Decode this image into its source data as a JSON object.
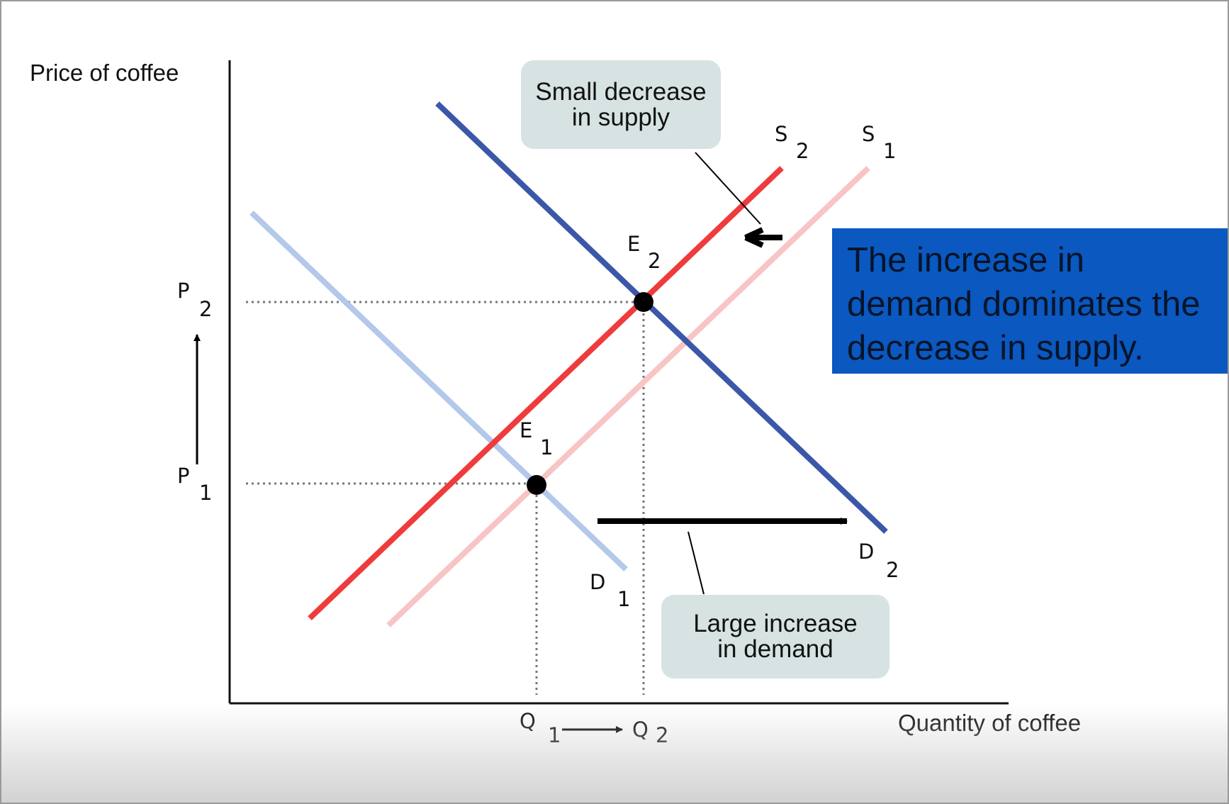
{
  "axes": {
    "y_title": "Price of coffee",
    "x_title": "Quantity of coffee"
  },
  "price_labels": {
    "p1": "P",
    "p1_sub": "1",
    "p2": "P",
    "p2_sub": "2"
  },
  "quantity_labels": {
    "q1": "Q",
    "q1_sub": "1",
    "q2": "Q",
    "q2_sub": "2"
  },
  "curves": {
    "s1": "S",
    "s1_sub": "1",
    "s2": "S",
    "s2_sub": "2",
    "d1": "D",
    "d1_sub": "1",
    "d2": "D",
    "d2_sub": "2"
  },
  "points": {
    "e1": "E",
    "e1_sub": "1",
    "e2": "E",
    "e2_sub": "2"
  },
  "callouts": {
    "supply": "Small decrease\nin supply",
    "demand": "Large increase\nin demand"
  },
  "headline": "The increase in\ndemand dominates the\ndecrease in supply.",
  "colors": {
    "s1": "#f8c4c4",
    "s2": "#ef3b3b",
    "d1": "#b3c8ea",
    "d2": "#3b57a8",
    "headline_bg": "#0a58c0",
    "callout_bg": "#d7e2e2"
  }
}
